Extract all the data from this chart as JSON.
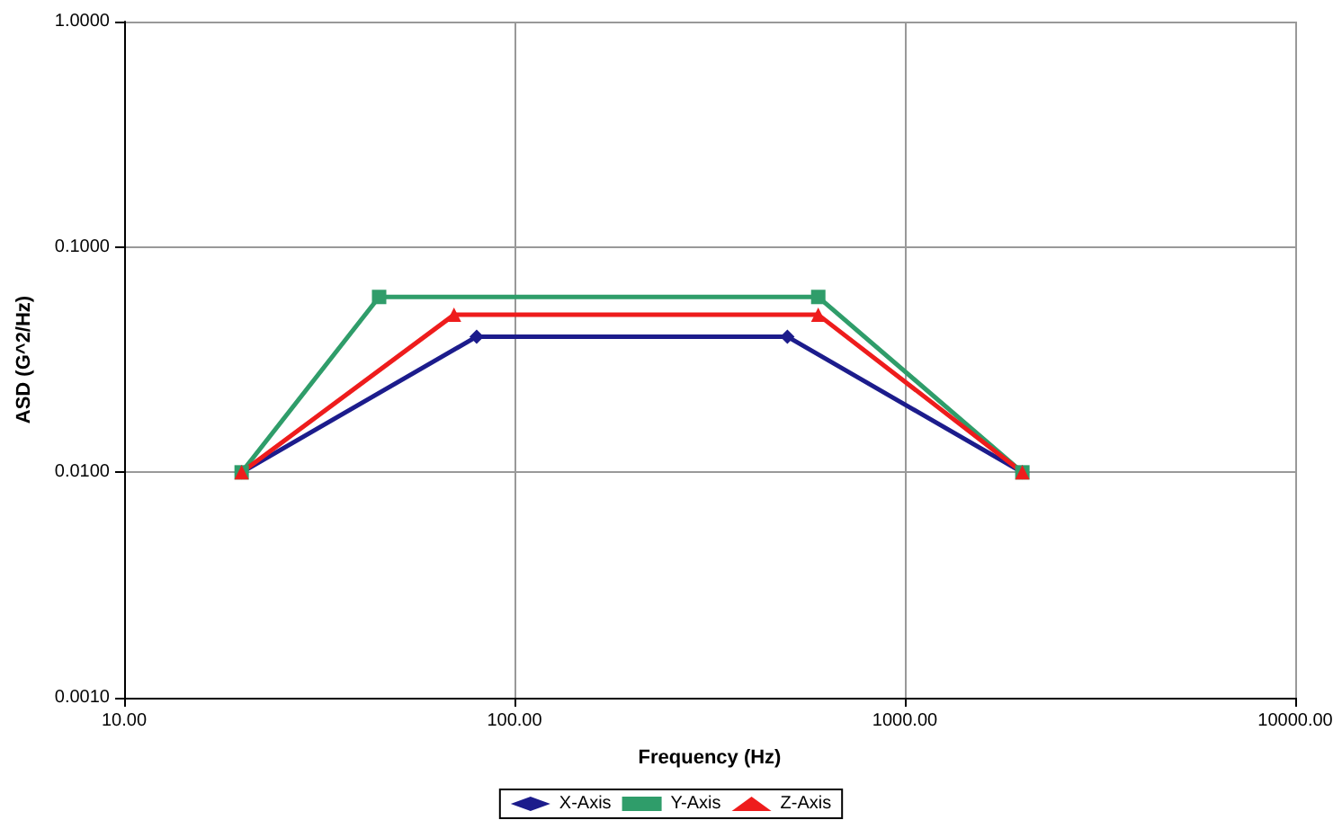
{
  "chart_data": {
    "type": "line",
    "xlabel": "Frequency (Hz)",
    "ylabel": "ASD (G^2/Hz)",
    "log": "xy",
    "grid": true,
    "legend": "bottom",
    "xlim": [
      10,
      10000
    ],
    "xticks": [
      {
        "value": 10,
        "label": "10.00"
      },
      {
        "value": 100,
        "label": "100.00"
      },
      {
        "value": 1000,
        "label": "1000.00"
      },
      {
        "value": 10000,
        "label": "10000.00"
      }
    ],
    "ylim": [
      0.001,
      1
    ],
    "yticks": [
      {
        "value": 0.001,
        "label": "0.0010"
      },
      {
        "value": 0.01,
        "label": "0.0100"
      },
      {
        "value": 0.1,
        "label": "0.1000"
      },
      {
        "value": 1,
        "label": "1.0000"
      }
    ],
    "series": [
      {
        "name": "X-Axis",
        "color": "#1c1c8c",
        "marker": "diamond",
        "x": [
          20,
          80,
          500,
          2000
        ],
        "values": [
          0.01,
          0.04,
          0.04,
          0.01
        ]
      },
      {
        "name": "Y-Axis",
        "color": "#2f9d6a",
        "marker": "square",
        "x": [
          20,
          45,
          600,
          2000
        ],
        "values": [
          0.01,
          0.06,
          0.06,
          0.01
        ]
      },
      {
        "name": "Z-Axis",
        "color": "#ee1c1c",
        "marker": "triangle",
        "x": [
          20,
          70,
          600,
          2000
        ],
        "values": [
          0.01,
          0.05,
          0.05,
          0.01
        ]
      }
    ]
  }
}
